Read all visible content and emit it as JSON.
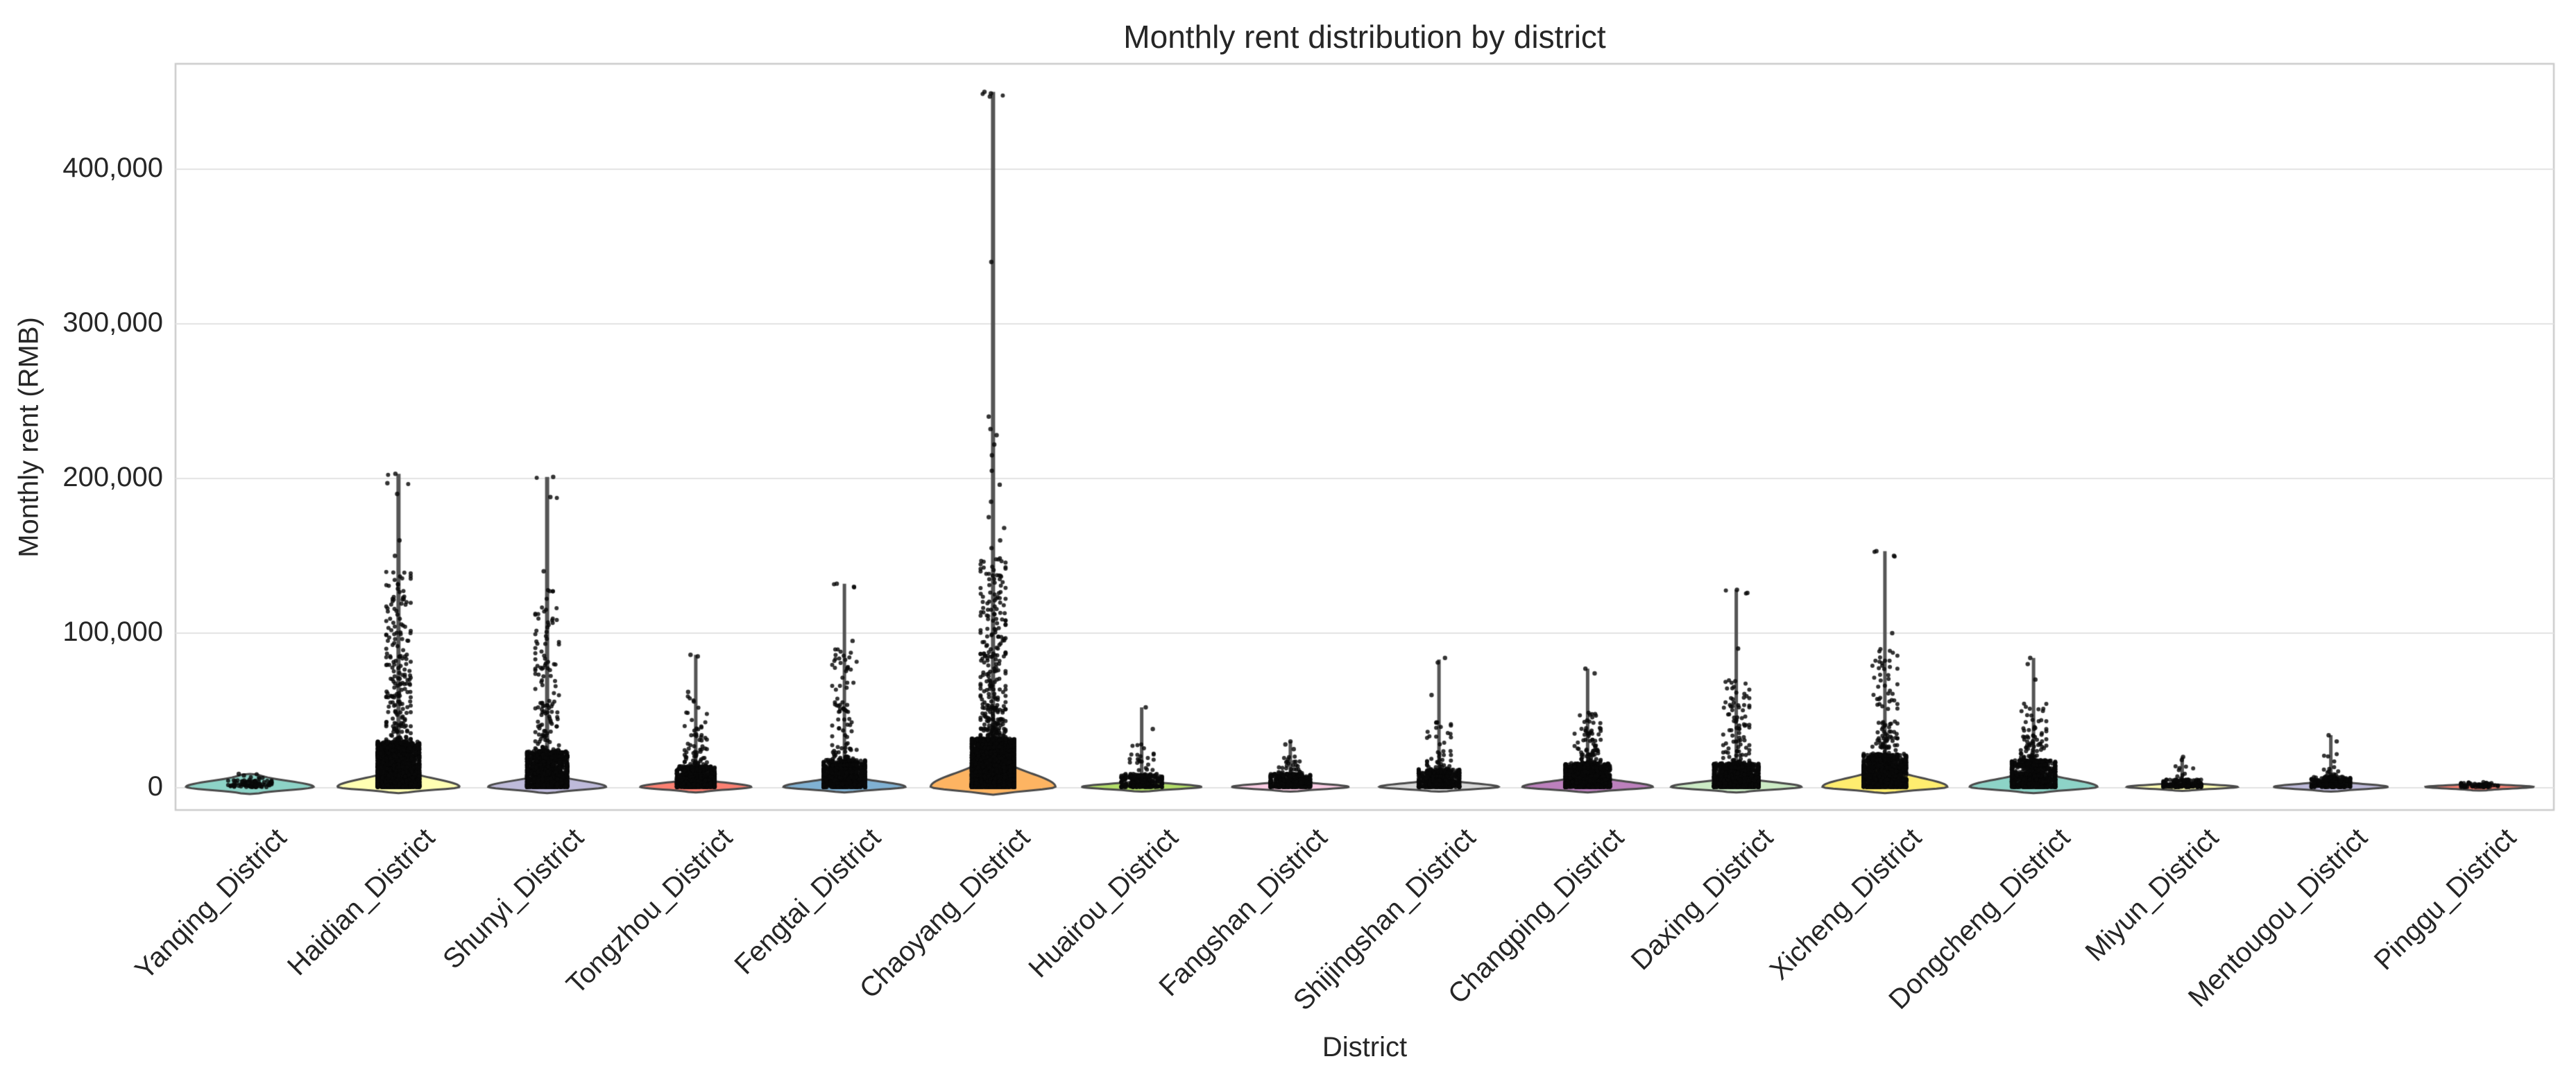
{
  "colors": {
    "background": "#ffffff",
    "grid": "#e3e3e3",
    "plot_border": "#cccccc",
    "stem": "#555555",
    "violin_edge": "#4a4a4a",
    "point": "#111111",
    "text": "#262626"
  },
  "chart_data": {
    "type": "violin",
    "title": "Monthly rent distribution by district",
    "xlabel": "District",
    "ylabel": "Monthly rent (RMB)",
    "grid": true,
    "legend": "none",
    "ylim": [
      -14500,
      468000
    ],
    "y_ticks": [
      0,
      100000,
      200000,
      300000,
      400000
    ],
    "y_tick_labels": [
      "0",
      "100,000",
      "200,000",
      "300,000",
      "400,000"
    ],
    "districts": [
      {
        "label": "Yanqing_District",
        "color": "#8dd3c7",
        "max_rent": 18000,
        "whisker_max": 0,
        "violin": {
          "hw": 92,
          "top": 9000,
          "bottom": -4000,
          "bump": {
            "amp": 0.16,
            "c": 14500,
            "s": 2600
          }
        },
        "points": {
          "n": 90,
          "dense_top": 5000,
          "tail_top": 9000,
          "extras": [
            8000,
            9000
          ]
        }
      },
      {
        "label": "Haidian_District",
        "color": "#ffffb3",
        "max_rent": 203000,
        "whisker_max": 203000,
        "violin": {
          "hw": 88,
          "top": 12000,
          "bottom": -3500
        },
        "points": {
          "n": 2300,
          "dense_top": 30000,
          "tail_top": 140000,
          "extras": [
            203000,
            197000,
            190000,
            160000,
            150000
          ]
        }
      },
      {
        "label": "Shunyi_District",
        "color": "#bebada",
        "max_rent": 201000,
        "whisker_max": 201000,
        "violin": {
          "hw": 85,
          "top": 9000,
          "bottom": -3500
        },
        "points": {
          "n": 1400,
          "dense_top": 24000,
          "tail_top": 130000,
          "extras": [
            201000,
            188000,
            140000
          ]
        }
      },
      {
        "label": "Tongzhou_District",
        "color": "#fb8072",
        "max_rent": 86000,
        "whisker_max": 86000,
        "violin": {
          "hw": 80,
          "top": 6000,
          "bottom": -3000
        },
        "points": {
          "n": 800,
          "dense_top": 14000,
          "tail_top": 60000,
          "extras": [
            86000,
            85000,
            62000
          ]
        }
      },
      {
        "label": "Fengtai_District",
        "color": "#80b1d3",
        "max_rent": 132000,
        "whisker_max": 132000,
        "violin": {
          "hw": 88,
          "top": 8000,
          "bottom": -3000
        },
        "points": {
          "n": 1000,
          "dense_top": 18000,
          "tail_top": 90000,
          "extras": [
            132000,
            130000,
            95000
          ]
        }
      },
      {
        "label": "Chaoyang_District",
        "color": "#fdb462",
        "max_rent": 450000,
        "whisker_max": 450000,
        "violin": {
          "hw": 90,
          "top": 20000,
          "bottom": -4500
        },
        "points": {
          "n": 3200,
          "dense_top": 32000,
          "tail_top": 150000,
          "extras": [
            450000,
            449000,
            447000,
            340000,
            240000,
            232000,
            228000,
            222000,
            215000,
            205000,
            196000,
            185000,
            175000,
            168000,
            160000,
            155000
          ]
        }
      },
      {
        "label": "Huairou_District",
        "color": "#b3de69",
        "max_rent": 52000,
        "whisker_max": 52000,
        "violin": {
          "hw": 86,
          "top": 4500,
          "bottom": -2500
        },
        "points": {
          "n": 280,
          "dense_top": 9000,
          "tail_top": 30000,
          "extras": [
            52000,
            38000
          ]
        }
      },
      {
        "label": "Fangshan_District",
        "color": "#fccde5",
        "max_rent": 30000,
        "whisker_max": 30000,
        "violin": {
          "hw": 84,
          "top": 4500,
          "bottom": -2500
        },
        "points": {
          "n": 420,
          "dense_top": 9000,
          "tail_top": 22000,
          "extras": [
            30000,
            28000,
            25000
          ]
        }
      },
      {
        "label": "Shijingshan_District",
        "color": "#d9d9d9",
        "max_rent": 84000,
        "whisker_max": 83000,
        "violin": {
          "hw": 86,
          "top": 5500,
          "bottom": -2500
        },
        "points": {
          "n": 520,
          "dense_top": 12000,
          "tail_top": 45000,
          "extras": [
            84000,
            81000,
            60000
          ]
        }
      },
      {
        "label": "Changping_District",
        "color": "#bc80bd",
        "max_rent": 77000,
        "whisker_max": 77000,
        "violin": {
          "hw": 94,
          "top": 8000,
          "bottom": -3000
        },
        "points": {
          "n": 1000,
          "dense_top": 16000,
          "tail_top": 50000,
          "extras": [
            77000,
            74000
          ]
        }
      },
      {
        "label": "Daxing_District",
        "color": "#ccebc5",
        "max_rent": 128000,
        "whisker_max": 128000,
        "violin": {
          "hw": 94,
          "top": 7000,
          "bottom": -3000
        },
        "points": {
          "n": 1000,
          "dense_top": 16000,
          "tail_top": 70000,
          "extras": [
            128000,
            126000,
            90000
          ]
        }
      },
      {
        "label": "Xicheng_District",
        "color": "#ffed6f",
        "max_rent": 153000,
        "whisker_max": 153000,
        "violin": {
          "hw": 90,
          "top": 13000,
          "bottom": -3500
        },
        "points": {
          "n": 1100,
          "dense_top": 22000,
          "tail_top": 90000,
          "extras": [
            153000,
            150000,
            100000
          ]
        }
      },
      {
        "label": "Dongcheng_District",
        "color": "#8dd3c7",
        "max_rent": 84000,
        "whisker_max": 84000,
        "violin": {
          "hw": 92,
          "top": 11000,
          "bottom": -3500
        },
        "points": {
          "n": 900,
          "dense_top": 18000,
          "tail_top": 55000,
          "extras": [
            84000,
            80000,
            70000
          ]
        }
      },
      {
        "label": "Miyun_District",
        "color": "#ffffb3",
        "max_rent": 20000,
        "whisker_max": 20000,
        "violin": {
          "hw": 80,
          "top": 3500,
          "bottom": -2000
        },
        "points": {
          "n": 170,
          "dense_top": 5500,
          "tail_top": 14000,
          "extras": [
            20000,
            18000
          ]
        }
      },
      {
        "label": "Mentougou_District",
        "color": "#bebada",
        "max_rent": 34000,
        "whisker_max": 34000,
        "violin": {
          "hw": 82,
          "top": 4500,
          "bottom": -2500
        },
        "points": {
          "n": 230,
          "dense_top": 7000,
          "tail_top": 22000,
          "extras": [
            34000,
            30000
          ]
        }
      },
      {
        "label": "Pinggu_District",
        "color": "#fb8072",
        "max_rent": 4000,
        "whisker_max": 0,
        "violin": {
          "hw": 78,
          "top": 2800,
          "bottom": -1800
        },
        "points": {
          "n": 70,
          "dense_top": 3000,
          "tail_top": 4000,
          "extras": []
        }
      }
    ]
  }
}
